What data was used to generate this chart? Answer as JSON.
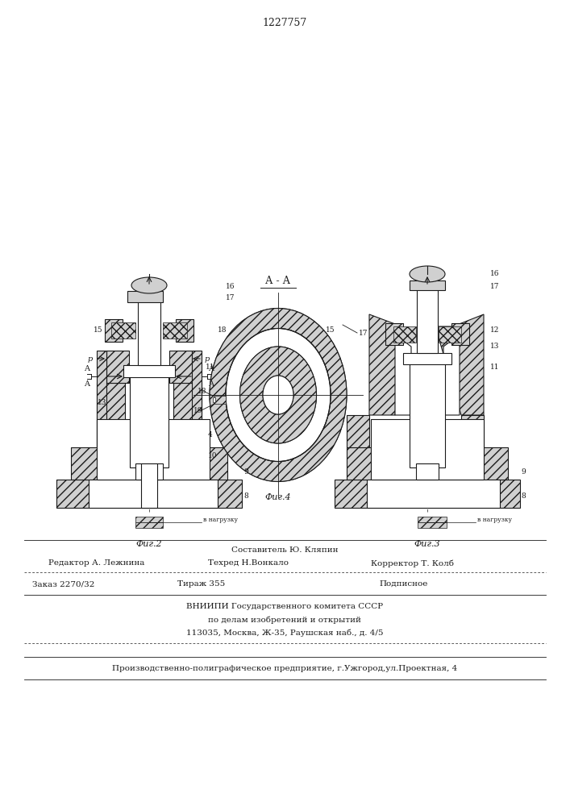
{
  "patent_number": "1227757",
  "fig2_label": "Фиг.2",
  "fig3_label": "Фиг.3",
  "fig4_label": "Фиг.4",
  "aa_label": "А - А",
  "v_nagruzku": "в нагрузку",
  "footer_sostavitel": "Составитель Ю. Кляпин",
  "footer_redaktor": "Редактор А. Лежнина",
  "footer_tekhred": "Техред Н.Вонкало",
  "footer_korrektor": "Корректор Т. Колб",
  "footer_zakaz": "Заказ 2270/32",
  "footer_tirazh": "Тираж 355",
  "footer_podp": "Подписное",
  "footer_vniip1": "ВНИИПИ Государственного комитета СССР",
  "footer_vniip2": "по делам изобретений и открытий",
  "footer_vniip3": "113035, Москва, Ж-35, Раушская наб., д. 4/5",
  "footer_prod": "Производственно-полиграфическое предприятие, г.Ужгород,ул.Проектная, 4",
  "bg_color": "#ffffff",
  "lc": "#1a1a1a",
  "hc": "#d0d0d0"
}
